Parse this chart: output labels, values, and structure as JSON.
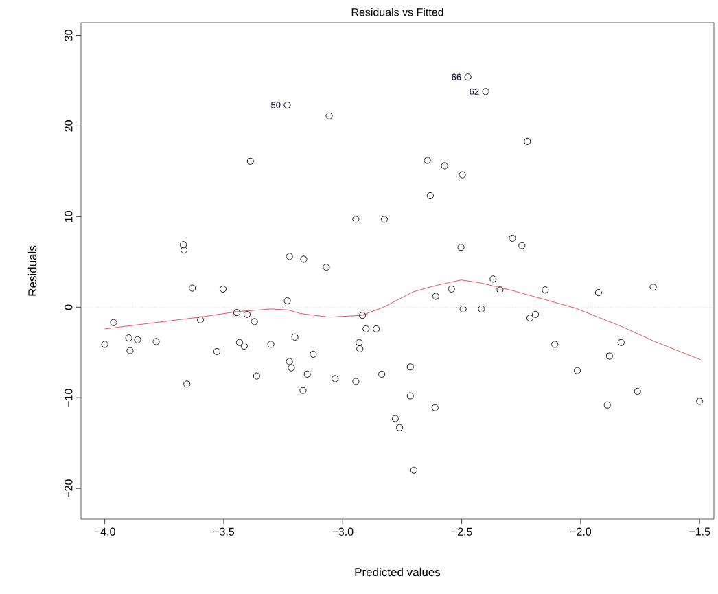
{
  "chart_data": {
    "type": "scatter",
    "title": "Residuals vs Fitted",
    "xlabel": "Predicted values",
    "ylabel": "Residuals",
    "xlim": [
      -4.1,
      -1.44
    ],
    "ylim": [
      -23.4,
      31.4
    ],
    "xticks": [
      {
        "value": -4,
        "label": "−4.0"
      },
      {
        "value": -3.5,
        "label": "−3.5"
      },
      {
        "value": -3,
        "label": "−3.0"
      },
      {
        "value": -2.5,
        "label": "−2.5"
      },
      {
        "value": -2,
        "label": "−2.0"
      },
      {
        "value": -1.5,
        "label": "−1.5"
      }
    ],
    "yticks": [
      {
        "value": -20,
        "label": "−20"
      },
      {
        "value": -10,
        "label": "−10"
      },
      0,
      10,
      20,
      30
    ],
    "marker": "circle",
    "series": [
      {
        "color": "#000000",
        "x": [
          -4.0,
          -3.963,
          -3.899,
          -3.894,
          -3.862,
          -3.784,
          -3.67,
          -3.667,
          -3.655,
          -3.632,
          -3.598,
          -3.529,
          -3.503,
          -3.445,
          -3.434,
          -3.414,
          -3.402,
          -3.388,
          -3.371,
          -3.362,
          -3.302,
          -3.233,
          -3.233,
          -3.224,
          -3.224,
          -3.216,
          -3.201,
          -3.167,
          -3.164,
          -3.149,
          -3.124,
          -3.069,
          -3.057,
          -3.032,
          -2.945,
          -2.945,
          -2.931,
          -2.928,
          -2.917,
          -2.902,
          -2.859,
          -2.836,
          -2.825,
          -2.779,
          -2.761,
          -2.716,
          -2.716,
          -2.701,
          -2.644,
          -2.632,
          -2.612,
          -2.609,
          -2.572,
          -2.543,
          -2.503,
          -2.497,
          -2.494,
          -2.474,
          -2.417,
          -2.399,
          -2.368,
          -2.339,
          -2.287,
          -2.247,
          -2.224,
          -2.213,
          -2.19,
          -2.149,
          -2.109,
          -2.014,
          -1.925,
          -1.888,
          -1.879,
          -1.83,
          -1.761,
          -1.695,
          -1.5
        ],
        "values": [
          -4.1,
          -1.7,
          -3.4,
          -4.8,
          -3.6,
          -3.8,
          6.9,
          6.3,
          -8.5,
          2.1,
          -1.4,
          -4.9,
          2.0,
          -0.6,
          -3.9,
          -4.3,
          -0.8,
          16.1,
          -1.6,
          -7.6,
          -4.1,
          0.7,
          22.3,
          5.6,
          -6.0,
          -6.7,
          -3.3,
          -9.2,
          5.3,
          -7.4,
          -5.2,
          4.4,
          21.1,
          -7.9,
          9.7,
          -8.2,
          -3.9,
          -4.6,
          -0.9,
          -2.4,
          -2.4,
          -7.4,
          9.7,
          -12.3,
          -13.3,
          -6.6,
          -9.8,
          -18.0,
          16.2,
          12.3,
          -11.1,
          1.2,
          15.6,
          2.0,
          6.6,
          14.6,
          -0.2,
          25.4,
          -0.2,
          23.8,
          3.1,
          1.9,
          7.6,
          6.8,
          18.3,
          -1.2,
          -0.8,
          1.9,
          -4.1,
          -7.0,
          1.6,
          -10.8,
          -5.4,
          -3.9,
          -9.3,
          2.2,
          -10.4
        ]
      },
      {
        "type": "line",
        "color": "#df536b",
        "marker": "none",
        "x": [
          -4.0,
          -3.6,
          -3.446,
          -3.302,
          -3.231,
          -3.178,
          -3.057,
          -2.919,
          -2.828,
          -2.703,
          -2.607,
          -2.502,
          -2.425,
          -2.282,
          -2.023,
          -1.831,
          -1.688,
          -1.496
        ],
        "values": [
          -2.4,
          -1.1,
          -0.5,
          -0.2,
          -0.3,
          -0.7,
          -1.1,
          -0.9,
          0.0,
          1.7,
          2.4,
          3.0,
          2.7,
          1.8,
          -0.1,
          -2.1,
          -3.8,
          -5.8
        ]
      }
    ],
    "ref_lines": [
      {
        "axis": "y",
        "value": 0,
        "color": "#cccccc",
        "line_style": "dotted"
      }
    ],
    "annotations": [
      {
        "text": "50",
        "x": -3.233,
        "y": 22.3
      },
      {
        "text": "66",
        "x": -2.474,
        "y": 25.4
      },
      {
        "text": "62",
        "x": -2.399,
        "y": 23.8
      }
    ]
  }
}
